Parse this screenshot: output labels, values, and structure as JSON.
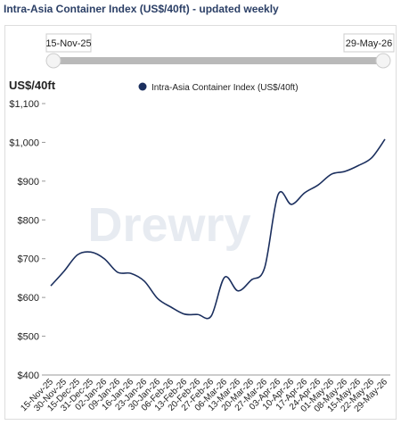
{
  "page_title": "Intra-Asia Container Index (US$/40ft) - updated weekly",
  "slider": {
    "start_label": "15-Nov-25",
    "end_label": "29-May-26"
  },
  "watermark": "Drewry",
  "chart_data": {
    "type": "line",
    "y_axis_label": "US$/40ft",
    "legend_position": "top",
    "categories": [
      "15-Nov-25",
      "30-Nov-25",
      "15-Dec-25",
      "31-Dec-25",
      "02-Jan-26",
      "09-Jan-26",
      "16-Jan-26",
      "23-Jan-26",
      "30-Jan-26",
      "06-Feb-26",
      "13-Feb-26",
      "20-Feb-26",
      "27-Feb-26",
      "06-Mar-26",
      "13-Mar-26",
      "20-Mar-26",
      "27-Mar-26",
      "03-Apr-26",
      "10-Apr-26",
      "17-Apr-26",
      "24-Apr-26",
      "01-May-26",
      "08-May-26",
      "15-May-26",
      "22-May-26",
      "29-May-26"
    ],
    "series": [
      {
        "name": "Intra-Asia Container Index (US$/40ft)",
        "color": "#1b2f5e",
        "values": [
          630,
          668,
          710,
          717,
          700,
          665,
          662,
          642,
          597,
          575,
          557,
          556,
          552,
          652,
          617,
          645,
          677,
          865,
          840,
          870,
          890,
          918,
          925,
          940,
          960,
          1008
        ]
      }
    ],
    "ylim": [
      400,
      1100
    ],
    "yticks": [
      {
        "value": 400,
        "label": "$400"
      },
      {
        "value": 500,
        "label": "$500"
      },
      {
        "value": 600,
        "label": "$600"
      },
      {
        "value": 700,
        "label": "$700"
      },
      {
        "value": 800,
        "label": "$800"
      },
      {
        "value": 900,
        "label": "$900"
      },
      {
        "value": 1000,
        "label": "$1,000"
      },
      {
        "value": 1100,
        "label": "$1,100"
      }
    ]
  }
}
